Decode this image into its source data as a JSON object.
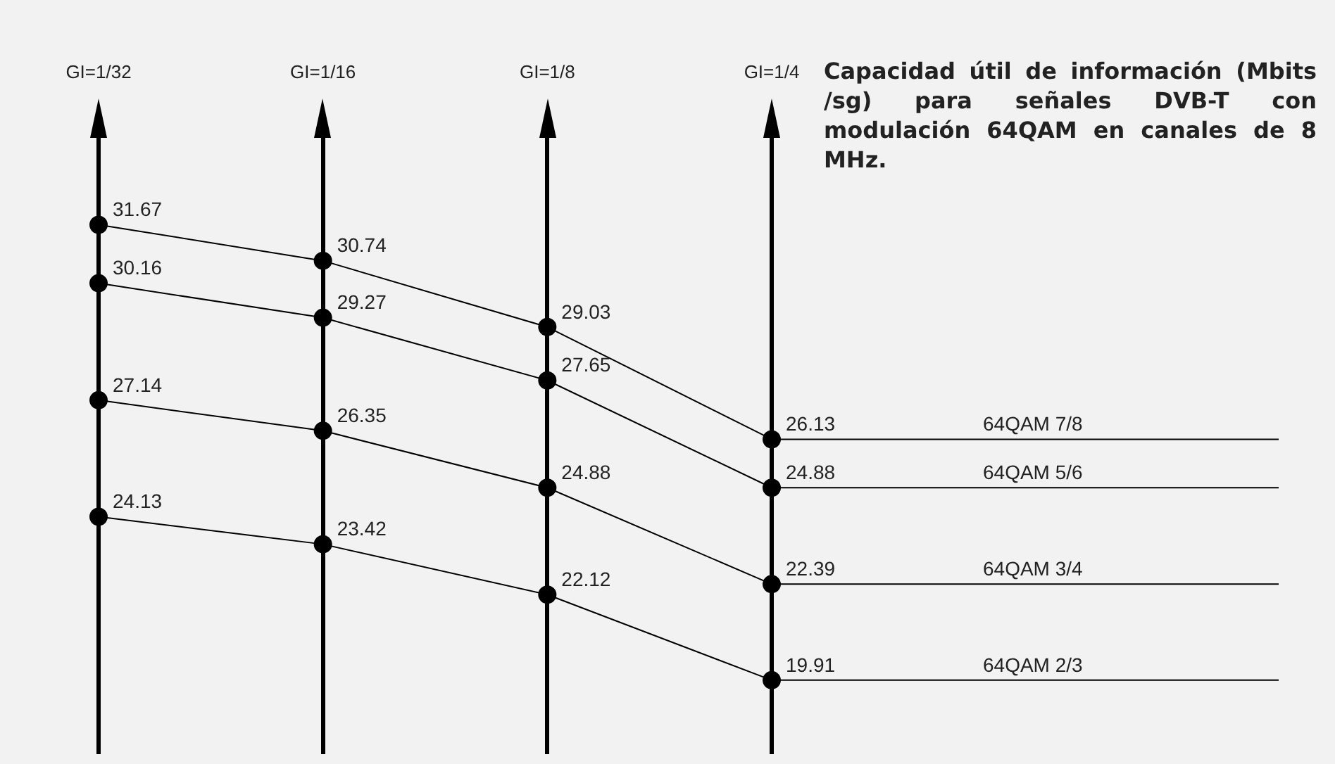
{
  "chart_data": {
    "type": "line",
    "title": "Capacidad útil de información (Mbits /sg) para señales DVB-T con modulación 64QAM en canales de 8 MHz.",
    "categories": [
      "GI=1/32",
      "GI=1/16",
      "GI=1/8",
      "GI=1/4"
    ],
    "series": [
      {
        "name": "64QAM 7/8",
        "color": "#000000",
        "values": [
          31.67,
          30.74,
          29.03,
          26.13
        ]
      },
      {
        "name": "64QAM 5/6",
        "color": "#000000",
        "values": [
          30.16,
          29.27,
          27.65,
          24.88
        ]
      },
      {
        "name": "64QAM 3/4",
        "color": "#000000",
        "values": [
          27.14,
          26.35,
          24.88,
          22.39
        ]
      },
      {
        "name": "64QAM 2/3",
        "color": "#000000",
        "values": [
          24.13,
          23.42,
          22.12,
          19.91
        ]
      }
    ],
    "data_labels": true,
    "grid": "x",
    "legend": false,
    "tick_labels": "x",
    "marker": "circle",
    "line_style": "solid"
  }
}
